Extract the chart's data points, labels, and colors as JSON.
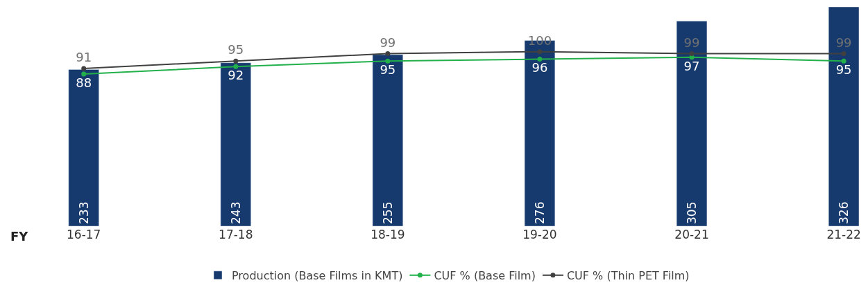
{
  "chart_data": {
    "type": "bar",
    "data_labels": true,
    "legend": "bottom",
    "categories": [
      "16-17",
      "17-18",
      "18-19",
      "19-20",
      "20-21",
      "21-22"
    ],
    "annotations": [
      "FY"
    ],
    "series": [
      {
        "name": "Production (Base Films in KMT)",
        "color": "#173a6e",
        "values": [
          233,
          243,
          255,
          276,
          305,
          326
        ]
      },
      {
        "name": "CUF % (Base Film)",
        "type": "line",
        "axis": "y2",
        "marker": "circle",
        "color": "#22b04b",
        "values": [
          88,
          92,
          95,
          96,
          97,
          95
        ]
      },
      {
        "name": "CUF % (Thin PET Film)",
        "type": "line",
        "axis": "y2",
        "marker": "circle",
        "color": "#404040",
        "values": [
          91,
          95,
          99,
          100,
          99,
          99
        ]
      }
    ]
  }
}
